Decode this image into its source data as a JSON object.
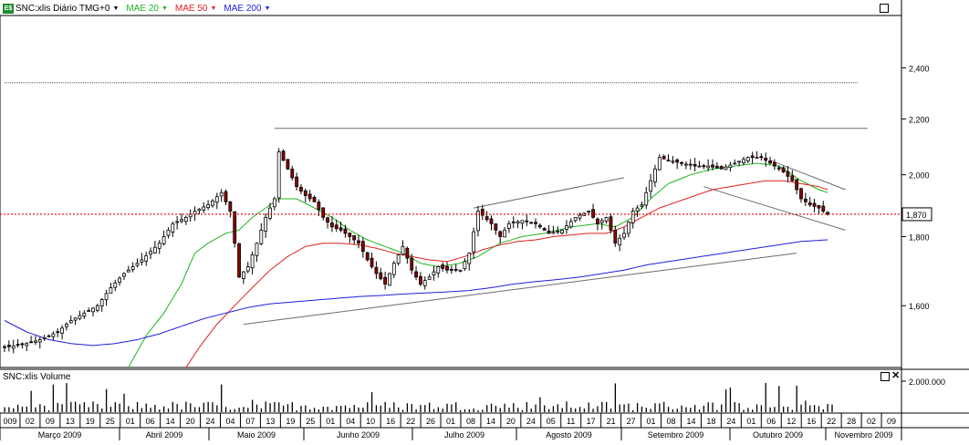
{
  "header": {
    "symbol_label": "SNC:xlis Diário TMG+0",
    "badge_text": "E$",
    "indicators": [
      {
        "label": "MAE 20",
        "color": "#1fb51f"
      },
      {
        "label": "MAE 50",
        "color": "#e02020"
      },
      {
        "label": "MAE 200",
        "color": "#2020e0"
      }
    ]
  },
  "volume_panel": {
    "label": "SNC:xlis Volume",
    "axis_label": "2.000.000"
  },
  "last_price_label": "1,870",
  "colors": {
    "up": "#ffffff",
    "down": "#8b0000",
    "wick": "#000000",
    "ma20": "#1fb51f",
    "ma50": "#e02020",
    "ma200": "#2020e0",
    "ref_line": "#e00000",
    "trendline": "#6b6b6b"
  },
  "chart_data": {
    "type": "candlestick",
    "x_unit": "trading day",
    "price_scale": "log",
    "price_ticks": [
      "2,400",
      "2,200",
      "2,000",
      "1,800",
      "1,600"
    ],
    "price_tick_values": [
      2.4,
      2.2,
      2.0,
      1.8,
      1.6
    ],
    "ylim": [
      1.44,
      2.62
    ],
    "reference_price": 1.87,
    "day_labels": [
      "009",
      "02",
      "09",
      "13",
      "19",
      "25",
      "01",
      "06",
      "14",
      "20",
      "24",
      "04",
      "07",
      "13",
      "19",
      "25",
      "01",
      "04",
      "10",
      "16",
      "22",
      "26",
      "01",
      "08",
      "14",
      "20",
      "24",
      "05",
      "11",
      "17",
      "21",
      "27",
      "01",
      "08",
      "14",
      "18",
      "24",
      "01",
      "06",
      "12",
      "16",
      "22",
      "28",
      "02",
      "09"
    ],
    "month_labels": [
      "Março 2009",
      "Abril 2009",
      "Maio 2009",
      "Junho 2009",
      "Julho 2009",
      "Agosto 2009",
      "Setembro 2009",
      "Outubro 2009",
      "Novembro 2009"
    ],
    "price_anchors": [
      [
        0,
        1.49
      ],
      [
        5,
        1.5
      ],
      [
        8,
        1.51
      ],
      [
        12,
        1.53
      ],
      [
        15,
        1.56
      ],
      [
        18,
        1.58
      ],
      [
        21,
        1.6
      ],
      [
        24,
        1.65
      ],
      [
        27,
        1.69
      ],
      [
        31,
        1.73
      ],
      [
        35,
        1.78
      ],
      [
        38,
        1.84
      ],
      [
        41,
        1.86
      ],
      [
        43,
        1.88
      ],
      [
        46,
        1.9
      ],
      [
        49,
        1.94
      ],
      [
        51,
        1.88
      ],
      [
        53,
        1.68
      ],
      [
        55,
        1.71
      ],
      [
        57,
        1.78
      ],
      [
        59,
        1.86
      ],
      [
        61,
        1.92
      ],
      [
        62,
        2.08
      ],
      [
        64,
        2.02
      ],
      [
        66,
        1.96
      ],
      [
        68,
        1.93
      ],
      [
        70,
        1.91
      ],
      [
        72,
        1.86
      ],
      [
        74,
        1.83
      ],
      [
        76,
        1.82
      ],
      [
        78,
        1.8
      ],
      [
        80,
        1.78
      ],
      [
        82,
        1.73
      ],
      [
        84,
        1.69
      ],
      [
        86,
        1.66
      ],
      [
        88,
        1.72
      ],
      [
        90,
        1.77
      ],
      [
        92,
        1.7
      ],
      [
        94,
        1.66
      ],
      [
        96,
        1.68
      ],
      [
        98,
        1.71
      ],
      [
        100,
        1.7
      ],
      [
        103,
        1.7
      ],
      [
        105,
        1.75
      ],
      [
        107,
        1.88
      ],
      [
        110,
        1.84
      ],
      [
        112,
        1.8
      ],
      [
        114,
        1.84
      ],
      [
        117,
        1.85
      ],
      [
        120,
        1.84
      ],
      [
        123,
        1.81
      ],
      [
        126,
        1.82
      ],
      [
        129,
        1.86
      ],
      [
        132,
        1.88
      ],
      [
        134,
        1.84
      ],
      [
        136,
        1.86
      ],
      [
        138,
        1.78
      ],
      [
        140,
        1.81
      ],
      [
        142,
        1.88
      ],
      [
        144,
        1.9
      ],
      [
        146,
        1.98
      ],
      [
        148,
        2.06
      ],
      [
        150,
        2.05
      ],
      [
        153,
        2.04
      ],
      [
        156,
        2.03
      ],
      [
        159,
        2.03
      ],
      [
        162,
        2.02
      ],
      [
        165,
        2.04
      ],
      [
        168,
        2.06
      ],
      [
        171,
        2.06
      ],
      [
        174,
        2.03
      ],
      [
        176,
        2.01
      ],
      [
        178,
        1.98
      ],
      [
        180,
        1.92
      ],
      [
        182,
        1.9
      ],
      [
        184,
        1.89
      ],
      [
        186,
        1.87
      ]
    ],
    "series": [
      {
        "name": "MAE 20",
        "anchors": [
          [
            28,
            1.44
          ],
          [
            32,
            1.52
          ],
          [
            36,
            1.58
          ],
          [
            40,
            1.66
          ],
          [
            43,
            1.75
          ],
          [
            46,
            1.78
          ],
          [
            50,
            1.81
          ],
          [
            53,
            1.82
          ],
          [
            56,
            1.86
          ],
          [
            59,
            1.89
          ],
          [
            62,
            1.92
          ],
          [
            66,
            1.92
          ],
          [
            70,
            1.89
          ],
          [
            74,
            1.86
          ],
          [
            78,
            1.82
          ],
          [
            82,
            1.79
          ],
          [
            86,
            1.77
          ],
          [
            90,
            1.75
          ],
          [
            94,
            1.72
          ],
          [
            98,
            1.71
          ],
          [
            103,
            1.72
          ],
          [
            107,
            1.74
          ],
          [
            112,
            1.78
          ],
          [
            117,
            1.8
          ],
          [
            122,
            1.81
          ],
          [
            128,
            1.83
          ],
          [
            134,
            1.84
          ],
          [
            138,
            1.83
          ],
          [
            142,
            1.86
          ],
          [
            146,
            1.92
          ],
          [
            150,
            1.97
          ],
          [
            155,
            2.0
          ],
          [
            160,
            2.02
          ],
          [
            165,
            2.03
          ],
          [
            170,
            2.04
          ],
          [
            175,
            2.03
          ],
          [
            180,
            1.98
          ],
          [
            184,
            1.95
          ],
          [
            186,
            1.94
          ]
        ]
      },
      {
        "name": "MAE 50",
        "anchors": [
          [
            41,
            1.44
          ],
          [
            44,
            1.49
          ],
          [
            48,
            1.55
          ],
          [
            52,
            1.6
          ],
          [
            56,
            1.65
          ],
          [
            60,
            1.7
          ],
          [
            64,
            1.74
          ],
          [
            68,
            1.77
          ],
          [
            72,
            1.78
          ],
          [
            76,
            1.78
          ],
          [
            80,
            1.775
          ],
          [
            84,
            1.765
          ],
          [
            88,
            1.75
          ],
          [
            92,
            1.74
          ],
          [
            96,
            1.73
          ],
          [
            100,
            1.725
          ],
          [
            104,
            1.74
          ],
          [
            108,
            1.76
          ],
          [
            112,
            1.775
          ],
          [
            116,
            1.785
          ],
          [
            120,
            1.79
          ],
          [
            124,
            1.8
          ],
          [
            128,
            1.805
          ],
          [
            132,
            1.81
          ],
          [
            136,
            1.81
          ],
          [
            140,
            1.83
          ],
          [
            144,
            1.86
          ],
          [
            148,
            1.89
          ],
          [
            152,
            1.91
          ],
          [
            156,
            1.93
          ],
          [
            160,
            1.95
          ],
          [
            164,
            1.96
          ],
          [
            168,
            1.97
          ],
          [
            172,
            1.98
          ],
          [
            176,
            1.98
          ],
          [
            180,
            1.97
          ],
          [
            184,
            1.96
          ],
          [
            186,
            1.95
          ]
        ]
      },
      {
        "name": "MAE 200",
        "anchors": [
          [
            0,
            1.56
          ],
          [
            5,
            1.53
          ],
          [
            10,
            1.51
          ],
          [
            15,
            1.5
          ],
          [
            20,
            1.495
          ],
          [
            25,
            1.5
          ],
          [
            30,
            1.51
          ],
          [
            35,
            1.525
          ],
          [
            40,
            1.545
          ],
          [
            45,
            1.565
          ],
          [
            50,
            1.58
          ],
          [
            55,
            1.595
          ],
          [
            60,
            1.605
          ],
          [
            65,
            1.61
          ],
          [
            70,
            1.615
          ],
          [
            75,
            1.62
          ],
          [
            80,
            1.625
          ],
          [
            85,
            1.628
          ],
          [
            90,
            1.632
          ],
          [
            95,
            1.635
          ],
          [
            100,
            1.638
          ],
          [
            105,
            1.642
          ],
          [
            110,
            1.65
          ],
          [
            115,
            1.66
          ],
          [
            120,
            1.667
          ],
          [
            125,
            1.673
          ],
          [
            130,
            1.68
          ],
          [
            135,
            1.69
          ],
          [
            140,
            1.7
          ],
          [
            145,
            1.715
          ],
          [
            150,
            1.725
          ],
          [
            155,
            1.735
          ],
          [
            160,
            1.745
          ],
          [
            165,
            1.755
          ],
          [
            170,
            1.765
          ],
          [
            175,
            1.775
          ],
          [
            180,
            1.785
          ],
          [
            186,
            1.79
          ]
        ]
      }
    ],
    "trendlines": [
      {
        "from": [
          0,
          2.34
        ],
        "to": [
          193,
          2.34
        ],
        "style": "dotted"
      },
      {
        "from": [
          61,
          2.165
        ],
        "to": [
          195,
          2.165
        ]
      },
      {
        "from": [
          54,
          1.55
        ],
        "to": [
          179,
          1.75
        ]
      },
      {
        "from": [
          106,
          1.89
        ],
        "to": [
          140,
          1.99
        ]
      },
      {
        "from": [
          158,
          1.96
        ],
        "to": [
          190,
          1.82
        ]
      },
      {
        "from": [
          173,
          2.05
        ],
        "to": [
          190,
          1.95
        ]
      }
    ]
  }
}
